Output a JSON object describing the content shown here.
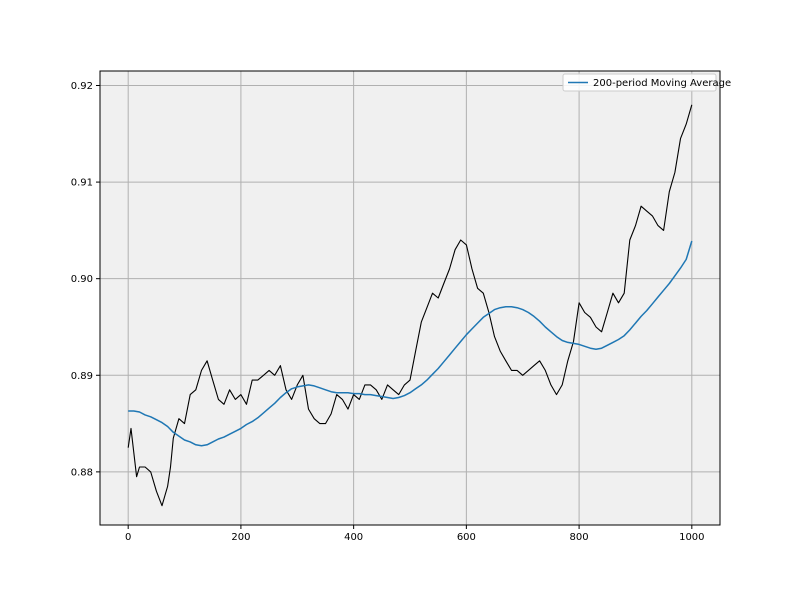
{
  "chart_data": {
    "type": "line",
    "title": "",
    "xlabel": "",
    "ylabel": "",
    "xlim": [
      -50,
      1050
    ],
    "ylim": [
      0.8745,
      0.9215
    ],
    "grid": true,
    "background": "#f0f0f0",
    "legend": {
      "placement": "top-right",
      "entries": [
        "200-period Moving Average"
      ]
    },
    "x_ticks": [
      {
        "value": 0,
        "label": "0"
      },
      {
        "value": 200,
        "label": "200"
      },
      {
        "value": 400,
        "label": "400"
      },
      {
        "value": 600,
        "label": "600"
      },
      {
        "value": 800,
        "label": "800"
      },
      {
        "value": 1000,
        "label": "1000"
      }
    ],
    "y_ticks": [
      {
        "value": 0.88,
        "label": "0.88"
      },
      {
        "value": 0.89,
        "label": "0.89"
      },
      {
        "value": 0.9,
        "label": "0.90"
      },
      {
        "value": 0.91,
        "label": "0.91"
      },
      {
        "value": 0.92,
        "label": "0.92"
      }
    ],
    "series": [
      {
        "color": "#000000",
        "x": [
          0,
          5,
          10,
          15,
          20,
          30,
          40,
          50,
          60,
          65,
          70,
          75,
          80,
          90,
          100,
          110,
          120,
          130,
          140,
          150,
          160,
          170,
          180,
          190,
          200,
          210,
          220,
          230,
          240,
          250,
          260,
          270,
          280,
          290,
          300,
          310,
          320,
          330,
          340,
          350,
          360,
          370,
          380,
          390,
          400,
          410,
          420,
          430,
          440,
          450,
          460,
          470,
          480,
          490,
          500,
          510,
          520,
          530,
          540,
          550,
          560,
          570,
          580,
          590,
          600,
          610,
          620,
          630,
          640,
          650,
          660,
          670,
          680,
          690,
          700,
          710,
          720,
          730,
          740,
          750,
          760,
          770,
          780,
          790,
          800,
          810,
          820,
          830,
          840,
          850,
          860,
          870,
          880,
          890,
          900,
          910,
          920,
          930,
          940,
          950,
          960,
          970,
          980,
          990,
          1000
        ],
        "values": [
          0.8825,
          0.8845,
          0.882,
          0.8795,
          0.8805,
          0.8805,
          0.88,
          0.878,
          0.8765,
          0.8775,
          0.8785,
          0.8805,
          0.8835,
          0.8855,
          0.885,
          0.888,
          0.8885,
          0.8905,
          0.8915,
          0.8895,
          0.8875,
          0.887,
          0.8885,
          0.8875,
          0.888,
          0.887,
          0.8895,
          0.8895,
          0.89,
          0.8905,
          0.89,
          0.891,
          0.8885,
          0.8875,
          0.889,
          0.89,
          0.8865,
          0.8855,
          0.885,
          0.885,
          0.886,
          0.888,
          0.8875,
          0.8865,
          0.888,
          0.8875,
          0.889,
          0.889,
          0.8885,
          0.8875,
          0.889,
          0.8885,
          0.888,
          0.889,
          0.8895,
          0.8925,
          0.8955,
          0.897,
          0.8985,
          0.898,
          0.8995,
          0.901,
          0.903,
          0.904,
          0.9035,
          0.901,
          0.899,
          0.8985,
          0.8965,
          0.894,
          0.8925,
          0.8915,
          0.8905,
          0.8905,
          0.89,
          0.8905,
          0.891,
          0.8915,
          0.8905,
          0.889,
          0.888,
          0.889,
          0.8915,
          0.8935,
          0.8975,
          0.8965,
          0.896,
          0.895,
          0.8945,
          0.8965,
          0.8985,
          0.8975,
          0.8985,
          0.904,
          0.9055,
          0.9075,
          0.907,
          0.9065,
          0.9055,
          0.905,
          0.909,
          0.911,
          0.9145,
          0.916,
          0.918
        ]
      },
      {
        "name": "200-period Moving Average",
        "color": "#1f77b4",
        "x": [
          0,
          10,
          20,
          30,
          40,
          50,
          60,
          70,
          80,
          90,
          100,
          110,
          120,
          130,
          140,
          150,
          160,
          170,
          180,
          190,
          200,
          210,
          220,
          230,
          240,
          250,
          260,
          270,
          280,
          290,
          300,
          310,
          320,
          330,
          340,
          350,
          360,
          370,
          380,
          390,
          400,
          410,
          420,
          430,
          440,
          450,
          460,
          470,
          480,
          490,
          500,
          510,
          520,
          530,
          540,
          550,
          560,
          570,
          580,
          590,
          600,
          610,
          620,
          630,
          640,
          650,
          660,
          670,
          680,
          690,
          700,
          710,
          720,
          730,
          740,
          750,
          760,
          770,
          780,
          790,
          800,
          810,
          820,
          830,
          840,
          850,
          860,
          870,
          880,
          890,
          900,
          910,
          920,
          930,
          940,
          950,
          960,
          970,
          980,
          990,
          1000
        ],
        "values": [
          0.8863,
          0.8863,
          0.8862,
          0.8859,
          0.8857,
          0.8854,
          0.8851,
          0.8847,
          0.8841,
          0.8837,
          0.8833,
          0.8831,
          0.8828,
          0.8827,
          0.8828,
          0.8831,
          0.8834,
          0.8836,
          0.8839,
          0.8842,
          0.8845,
          0.8849,
          0.8852,
          0.8856,
          0.8861,
          0.8866,
          0.8871,
          0.8877,
          0.8882,
          0.8886,
          0.8888,
          0.8889,
          0.889,
          0.8889,
          0.8887,
          0.8885,
          0.8883,
          0.8882,
          0.8882,
          0.8882,
          0.8881,
          0.8881,
          0.888,
          0.888,
          0.8879,
          0.8878,
          0.8877,
          0.8876,
          0.8877,
          0.8879,
          0.8882,
          0.8886,
          0.889,
          0.8895,
          0.8901,
          0.8907,
          0.8914,
          0.8921,
          0.8928,
          0.8935,
          0.8942,
          0.8948,
          0.8954,
          0.896,
          0.8964,
          0.8968,
          0.897,
          0.8971,
          0.8971,
          0.897,
          0.8968,
          0.8965,
          0.8961,
          0.8956,
          0.895,
          0.8945,
          0.894,
          0.8936,
          0.8934,
          0.8933,
          0.8932,
          0.893,
          0.8928,
          0.8927,
          0.8928,
          0.8931,
          0.8934,
          0.8937,
          0.8941,
          0.8947,
          0.8954,
          0.8961,
          0.8967,
          0.8974,
          0.8981,
          0.8988,
          0.8995,
          0.9003,
          0.9011,
          0.902,
          0.9039
        ]
      }
    ]
  }
}
